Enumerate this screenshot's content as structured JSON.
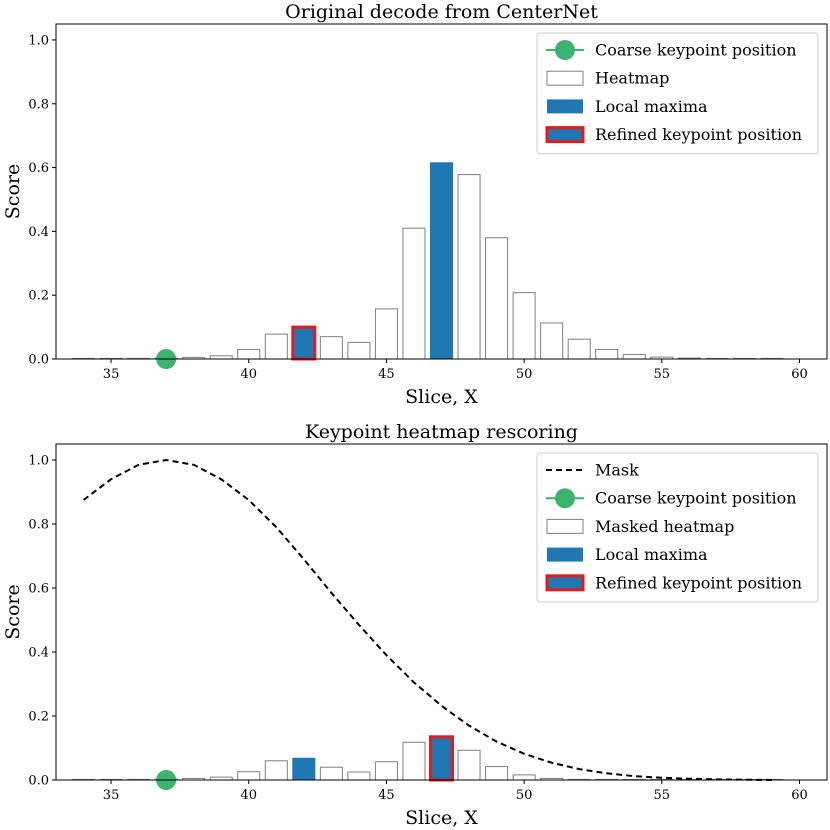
{
  "colors": {
    "coarse": "#3cb371",
    "maxima": "#1f77b4",
    "refined_edge": "#e41a1c",
    "heatmap_edge": "#7f7f7f",
    "mask": "#000000"
  },
  "chart_data": [
    {
      "type": "bar",
      "title": "Original decode from CenterNet",
      "xlabel": "Slice, X",
      "ylabel": "Score",
      "xlim": [
        33,
        61
      ],
      "ylim": [
        0,
        1.05
      ],
      "xticks": [
        35,
        40,
        45,
        50,
        55,
        60
      ],
      "yticks": [
        0.0,
        0.2,
        0.4,
        0.6,
        0.8,
        1.0
      ],
      "legend_position": "top-right",
      "legend": {
        "coarse": "Coarse keypoint position",
        "heatmap": "Heatmap",
        "maxima": "Local maxima",
        "refined": "Refined keypoint position"
      },
      "x": [
        34,
        35,
        36,
        37,
        38,
        39,
        40,
        41,
        42,
        43,
        44,
        45,
        46,
        47,
        48,
        49,
        50,
        51,
        52,
        53,
        54,
        55,
        56,
        57,
        58,
        59
      ],
      "values": [
        0.001,
        0.001,
        0.002,
        0.003,
        0.005,
        0.01,
        0.03,
        0.078,
        0.1,
        0.07,
        0.052,
        0.157,
        0.41,
        0.615,
        0.578,
        0.38,
        0.208,
        0.113,
        0.062,
        0.03,
        0.014,
        0.006,
        0.003,
        0.001,
        0.001,
        0.001
      ],
      "local_maxima_x": [
        42,
        47
      ],
      "coarse_x": 37,
      "coarse_y": 0.0,
      "refined_x": 42,
      "mask": null
    },
    {
      "type": "bar",
      "title": "Keypoint heatmap rescoring",
      "xlabel": "Slice, X",
      "ylabel": "Score",
      "xlim": [
        33,
        61
      ],
      "ylim": [
        0,
        1.05
      ],
      "xticks": [
        35,
        40,
        45,
        50,
        55,
        60
      ],
      "yticks": [
        0.0,
        0.2,
        0.4,
        0.6,
        0.8,
        1.0
      ],
      "legend_position": "top-right",
      "legend": {
        "mask": "Mask",
        "coarse": "Coarse keypoint position",
        "heatmap": "Masked heatmap",
        "maxima": "Local maxima",
        "refined": "Refined keypoint position"
      },
      "x": [
        34,
        35,
        36,
        37,
        38,
        39,
        40,
        41,
        42,
        43,
        44,
        45,
        46,
        47,
        48,
        49,
        50,
        51,
        52,
        53,
        54,
        55,
        56,
        57,
        58,
        59
      ],
      "values": [
        0.001,
        0.001,
        0.002,
        0.003,
        0.005,
        0.009,
        0.026,
        0.06,
        0.068,
        0.04,
        0.025,
        0.057,
        0.118,
        0.135,
        0.093,
        0.042,
        0.016,
        0.005,
        0.001,
        0.0,
        0.0,
        0.0,
        0.0,
        0.0,
        0.0,
        0.0
      ],
      "local_maxima_x": [
        42,
        47
      ],
      "coarse_x": 37,
      "coarse_y": 0.0,
      "refined_x": 47,
      "mask": {
        "x": [
          34,
          35,
          36,
          37,
          38,
          39,
          40,
          41,
          42,
          43,
          44,
          45,
          46,
          47,
          48,
          49,
          50,
          51,
          52,
          53,
          54,
          55,
          56,
          57,
          58,
          59
        ],
        "y": [
          0.875,
          0.94,
          0.985,
          1.0,
          0.985,
          0.94,
          0.875,
          0.79,
          0.69,
          0.585,
          0.485,
          0.39,
          0.305,
          0.232,
          0.17,
          0.12,
          0.082,
          0.054,
          0.034,
          0.021,
          0.012,
          0.007,
          0.004,
          0.002,
          0.001,
          0.0
        ]
      }
    }
  ]
}
